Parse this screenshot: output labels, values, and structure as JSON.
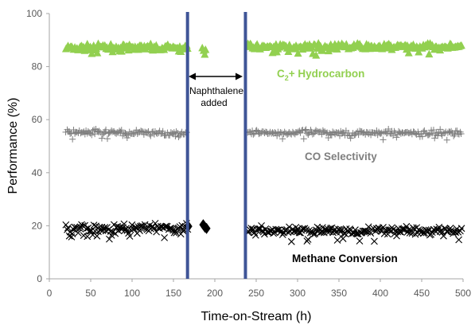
{
  "chart_data": {
    "type": "scatter",
    "xlabel": "Time-on-Stream (h)",
    "ylabel": "Performance (%)",
    "xlim": [
      0,
      500
    ],
    "ylim": [
      0,
      100
    ],
    "xticks": [
      0,
      50,
      100,
      150,
      200,
      250,
      300,
      350,
      400,
      450,
      500
    ],
    "yticks": [
      0,
      20,
      40,
      60,
      80,
      100
    ],
    "grid": false,
    "legend": "none",
    "series": [
      {
        "name": "C2+ Hydrocarbon",
        "marker": "triangle",
        "color": "#92D050",
        "segments": [
          {
            "x_start": 20,
            "x_end": 168,
            "mean": 87,
            "amplitude": 1.8
          },
          {
            "x_start": 185,
            "x_end": 190,
            "mean": 86,
            "amplitude": 1.5
          },
          {
            "x_start": 240,
            "x_end": 498,
            "mean": 87.5,
            "amplitude": 1.6
          }
        ]
      },
      {
        "name": "CO Selectivity",
        "marker": "plus",
        "color": "#7F7F7F",
        "segments": [
          {
            "x_start": 20,
            "x_end": 167,
            "mean": 55,
            "amplitude": 1.8
          },
          {
            "x_start": 240,
            "x_end": 498,
            "mean": 55,
            "amplitude": 1.6
          }
        ]
      },
      {
        "name": "Methane Conversion",
        "marker": "x",
        "color": "#000000",
        "segments": [
          {
            "x_start": 20,
            "x_end": 168,
            "mean": 19,
            "amplitude": 2.5
          },
          {
            "x_start": 240,
            "x_end": 498,
            "mean": 18,
            "amplitude": 2.3
          }
        ]
      }
    ],
    "diamonds": {
      "color": "#000000",
      "points": [
        [
          168,
          19.8
        ],
        [
          186,
          20.4
        ],
        [
          188,
          19.5
        ],
        [
          190,
          19
        ]
      ]
    },
    "vertical_lines": {
      "color": "#3F5597",
      "x": [
        167,
        237
      ]
    },
    "annotations": {
      "hydrocarbon_label": "C",
      "hydrocarbon_sub": "2",
      "hydrocarbon_rest": "+ Hydrocarbon",
      "co_label": "CO Selectivity",
      "methane_label": "Methane Conversion",
      "naphthalene_line1": "Naphthalene",
      "naphthalene_line2": "added"
    }
  }
}
